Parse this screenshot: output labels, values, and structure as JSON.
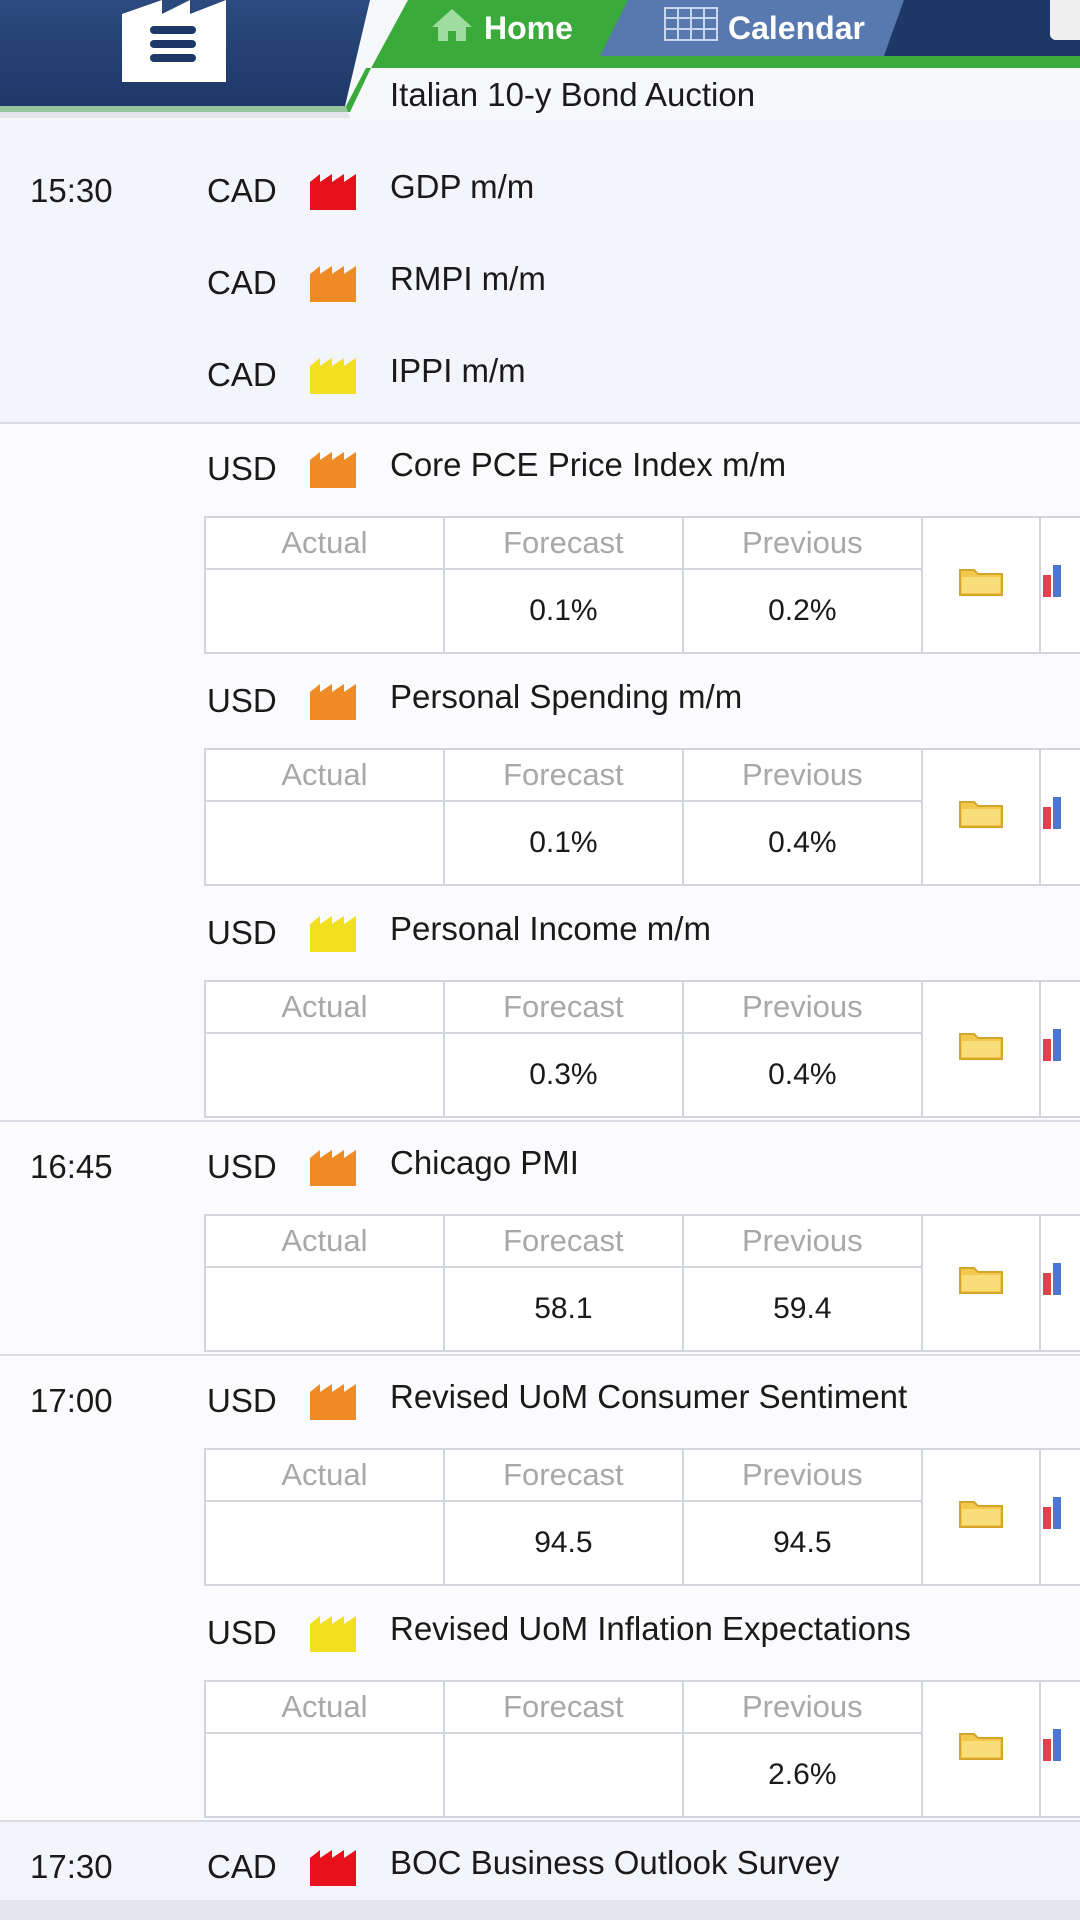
{
  "header": {
    "tabs": [
      {
        "label": "Home",
        "icon": "home-icon",
        "active": true
      },
      {
        "label": "Calendar",
        "icon": "calendar-icon",
        "active": false
      }
    ],
    "top_event": "Italian 10-y Bond Auction"
  },
  "colors": {
    "nav_blue": "#1e3868",
    "active_green": "#3aab3a",
    "impact_high": "#e8101a",
    "impact_medium": "#f08a24",
    "impact_low": "#f0e020"
  },
  "table_headers": {
    "actual": "Actual",
    "forecast": "Forecast",
    "previous": "Previous"
  },
  "groups": [
    {
      "time": "15:30",
      "events": [
        {
          "currency": "CAD",
          "impact": "high",
          "name": "GDP m/m"
        },
        {
          "currency": "CAD",
          "impact": "medium",
          "name": "RMPI m/m"
        },
        {
          "currency": "CAD",
          "impact": "low",
          "name": "IPPI m/m"
        }
      ]
    },
    {
      "time": "",
      "events": [
        {
          "currency": "USD",
          "impact": "medium",
          "name": "Core PCE Price Index m/m",
          "actual": "",
          "forecast": "0.1%",
          "previous": "0.2%"
        },
        {
          "currency": "USD",
          "impact": "medium",
          "name": "Personal Spending m/m",
          "actual": "",
          "forecast": "0.1%",
          "previous": "0.4%"
        },
        {
          "currency": "USD",
          "impact": "low",
          "name": "Personal Income m/m",
          "actual": "",
          "forecast": "0.3%",
          "previous": "0.4%"
        }
      ]
    },
    {
      "time": "16:45",
      "events": [
        {
          "currency": "USD",
          "impact": "medium",
          "name": "Chicago PMI",
          "actual": "",
          "forecast": "58.1",
          "previous": "59.4"
        }
      ]
    },
    {
      "time": "17:00",
      "events": [
        {
          "currency": "USD",
          "impact": "medium",
          "name": "Revised UoM Consumer Sentiment",
          "actual": "",
          "forecast": "94.5",
          "previous": "94.5"
        },
        {
          "currency": "USD",
          "impact": "low",
          "name": "Revised UoM Inflation Expectations",
          "actual": "",
          "forecast": "",
          "previous": "2.6%"
        }
      ]
    },
    {
      "time": "17:30",
      "events": [
        {
          "currency": "CAD",
          "impact": "high",
          "name": "BOC Business Outlook Survey"
        }
      ]
    }
  ]
}
